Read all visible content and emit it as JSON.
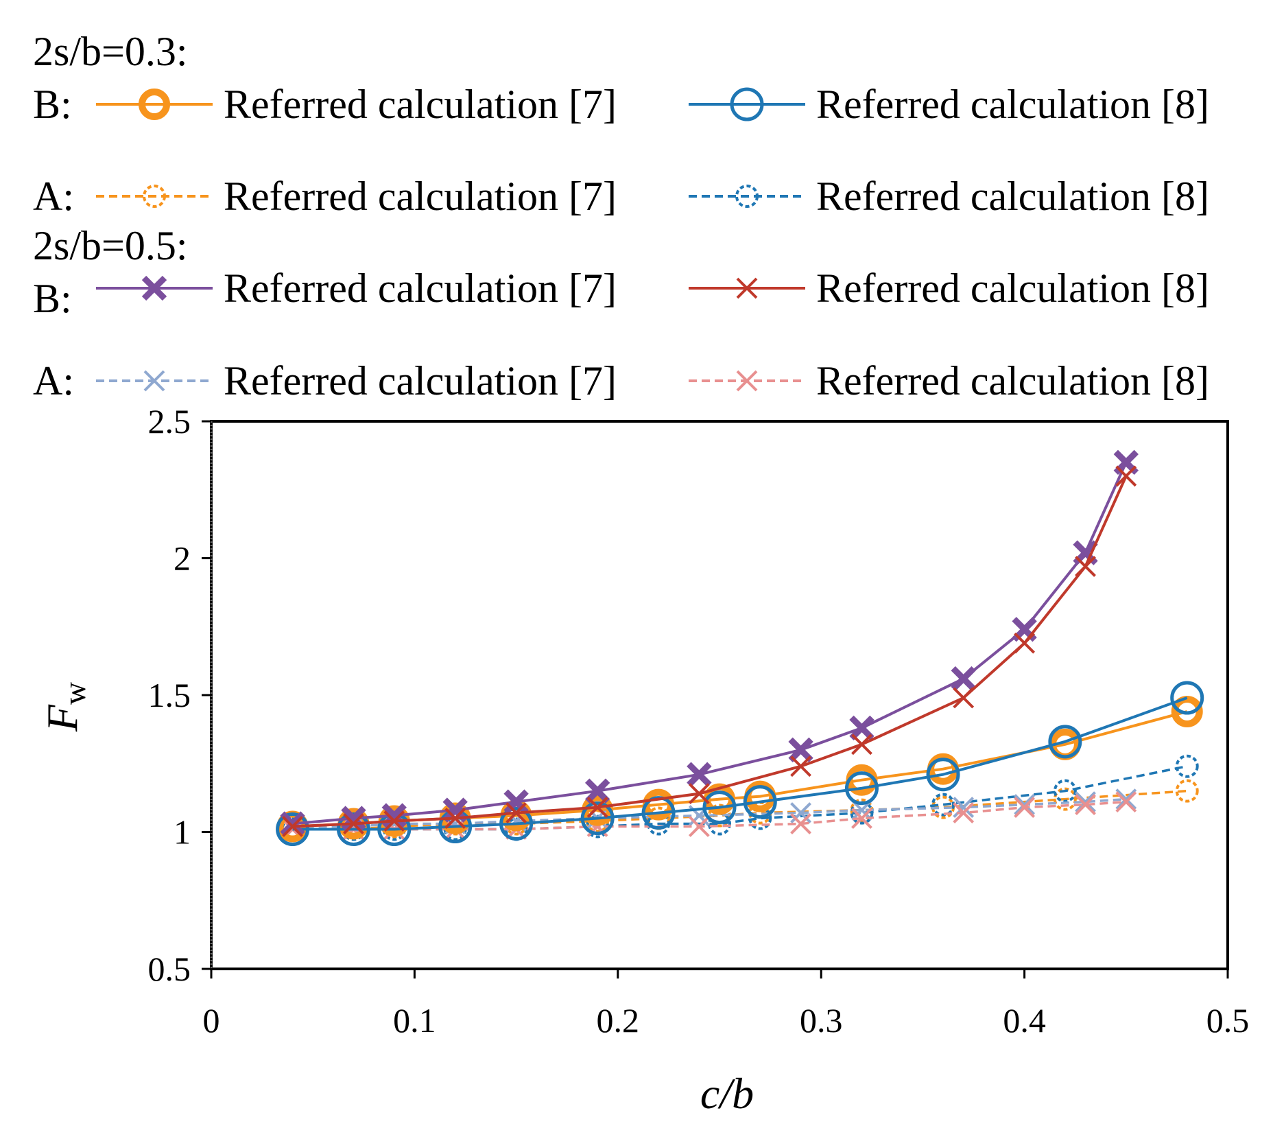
{
  "chart_data": {
    "type": "line",
    "xlabel": "c/b",
    "ylabel": "F",
    "ylabel_subscript": "w",
    "xlim": [
      0,
      0.5
    ],
    "ylim": [
      0.5,
      2.5
    ],
    "x_ticks": [
      "0",
      "0.1",
      "0.2",
      "0.3",
      "0.4",
      "0.5"
    ],
    "y_ticks": [
      "0.5",
      "1",
      "1.5",
      "2",
      "2.5"
    ],
    "x_tick_values": [
      0,
      0.1,
      0.2,
      0.3,
      0.4,
      0.5
    ],
    "y_tick_values": [
      0.5,
      1,
      1.5,
      2,
      2.5
    ],
    "legend": {
      "group1_title": "2s/b=0.3:",
      "group2_title": "2s/b=0.5:",
      "row_labels": [
        "B:",
        "A:",
        "B:",
        "A:"
      ]
    },
    "series": [
      {
        "name": "Referred calculation [7]",
        "group": "2s/b=0.3",
        "case": "B",
        "color": "#F7941D",
        "dash": false,
        "marker": "circle-bold",
        "x": [
          0.04,
          0.07,
          0.09,
          0.12,
          0.15,
          0.19,
          0.22,
          0.25,
          0.27,
          0.32,
          0.36,
          0.42,
          0.48
        ],
        "y": [
          1.02,
          1.03,
          1.04,
          1.05,
          1.06,
          1.08,
          1.1,
          1.12,
          1.13,
          1.19,
          1.23,
          1.32,
          1.44
        ]
      },
      {
        "name": "Referred calculation [8]",
        "group": "2s/b=0.3",
        "case": "B",
        "color": "#1F77B4",
        "dash": false,
        "marker": "circle",
        "x": [
          0.04,
          0.07,
          0.09,
          0.12,
          0.15,
          0.19,
          0.22,
          0.25,
          0.27,
          0.32,
          0.36,
          0.42,
          0.48
        ],
        "y": [
          1.01,
          1.01,
          1.01,
          1.02,
          1.03,
          1.05,
          1.07,
          1.09,
          1.11,
          1.16,
          1.21,
          1.33,
          1.49
        ]
      },
      {
        "name": "Referred calculation [7]",
        "group": "2s/b=0.3",
        "case": "A",
        "color": "#F7941D",
        "dash": true,
        "marker": "circle-dashed",
        "x": [
          0.04,
          0.07,
          0.09,
          0.12,
          0.15,
          0.19,
          0.22,
          0.25,
          0.27,
          0.32,
          0.36,
          0.42,
          0.48
        ],
        "y": [
          1.01,
          1.01,
          1.02,
          1.03,
          1.03,
          1.04,
          1.05,
          1.06,
          1.07,
          1.08,
          1.09,
          1.12,
          1.15
        ]
      },
      {
        "name": "Referred calculation [8]",
        "group": "2s/b=0.3",
        "case": "A",
        "color": "#1F77B4",
        "dash": true,
        "marker": "circle-dashed",
        "x": [
          0.04,
          0.07,
          0.09,
          0.12,
          0.15,
          0.19,
          0.22,
          0.25,
          0.27,
          0.32,
          0.36,
          0.42,
          0.48
        ],
        "y": [
          1.01,
          1.01,
          1.01,
          1.01,
          1.01,
          1.02,
          1.03,
          1.03,
          1.05,
          1.07,
          1.1,
          1.15,
          1.24
        ]
      },
      {
        "name": "Referred calculation [7]",
        "group": "2s/b=0.5",
        "case": "B",
        "color": "#7B4F9D",
        "dash": false,
        "marker": "x-bold",
        "x": [
          0.04,
          0.07,
          0.09,
          0.12,
          0.15,
          0.19,
          0.24,
          0.29,
          0.32,
          0.37,
          0.4,
          0.43,
          0.45
        ],
        "y": [
          1.03,
          1.05,
          1.06,
          1.08,
          1.11,
          1.15,
          1.21,
          1.3,
          1.38,
          1.56,
          1.74,
          2.02,
          2.35
        ]
      },
      {
        "name": "Referred calculation [8]",
        "group": "2s/b=0.5",
        "case": "B",
        "color": "#C0392B",
        "dash": false,
        "marker": "x",
        "x": [
          0.04,
          0.07,
          0.09,
          0.12,
          0.15,
          0.19,
          0.24,
          0.29,
          0.32,
          0.37,
          0.4,
          0.43,
          0.45
        ],
        "y": [
          1.02,
          1.03,
          1.04,
          1.05,
          1.07,
          1.09,
          1.14,
          1.24,
          1.32,
          1.49,
          1.69,
          1.97,
          2.3
        ]
      },
      {
        "name": "Referred calculation [7]",
        "group": "2s/b=0.5",
        "case": "A",
        "color": "#8FA8D0",
        "dash": true,
        "marker": "x",
        "x": [
          0.04,
          0.07,
          0.09,
          0.12,
          0.15,
          0.19,
          0.24,
          0.29,
          0.32,
          0.37,
          0.4,
          0.43,
          0.45
        ],
        "y": [
          1.02,
          1.02,
          1.03,
          1.03,
          1.04,
          1.05,
          1.06,
          1.07,
          1.08,
          1.09,
          1.1,
          1.11,
          1.12
        ]
      },
      {
        "name": "Referred calculation [8]",
        "group": "2s/b=0.5",
        "case": "A",
        "color": "#E89090",
        "dash": true,
        "marker": "x",
        "x": [
          0.04,
          0.07,
          0.09,
          0.12,
          0.15,
          0.19,
          0.24,
          0.29,
          0.32,
          0.37,
          0.4,
          0.43,
          0.45
        ],
        "y": [
          1.01,
          1.01,
          1.01,
          1.01,
          1.01,
          1.02,
          1.02,
          1.03,
          1.05,
          1.07,
          1.09,
          1.1,
          1.11
        ]
      }
    ]
  }
}
